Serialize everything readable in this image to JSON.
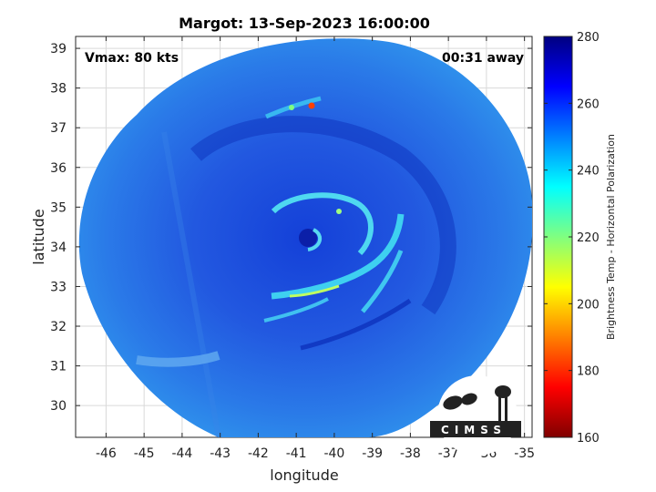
{
  "chart_data": {
    "type": "heatmap",
    "title": "Margot: 13-Sep-2023 16:00:00",
    "xlabel": "longitude",
    "ylabel": "latitude",
    "xlim": [
      -46.8,
      -34.8
    ],
    "ylim": [
      29.2,
      39.3
    ],
    "xticks": [
      -46,
      -45,
      -44,
      -43,
      -42,
      -41,
      -40,
      -39,
      -38,
      -37,
      -36,
      -35
    ],
    "yticks": [
      30,
      31,
      32,
      33,
      34,
      35,
      36,
      37,
      38,
      39
    ],
    "grid": true,
    "annotations": {
      "vmax": "Vmax: 80 kts",
      "time_offset": "00:31 away"
    },
    "colorbar": {
      "label": "Brightness Temp - Horizontal Polarization",
      "range": [
        160,
        280
      ],
      "ticks": [
        160,
        180,
        200,
        220,
        240,
        260,
        280
      ],
      "position": "right"
    },
    "storm_center": {
      "lon": -40.8,
      "lat": 34.2
    },
    "logo_text": "CIMSS"
  },
  "colors": {
    "colormap": [
      "#800000",
      "#ff0000",
      "#ff8000",
      "#ffff00",
      "#80ff80",
      "#00ffff",
      "#0080ff",
      "#0000ff",
      "#000080"
    ],
    "background_swath": "#2f6fe8",
    "grid": "#d9d9d9"
  }
}
